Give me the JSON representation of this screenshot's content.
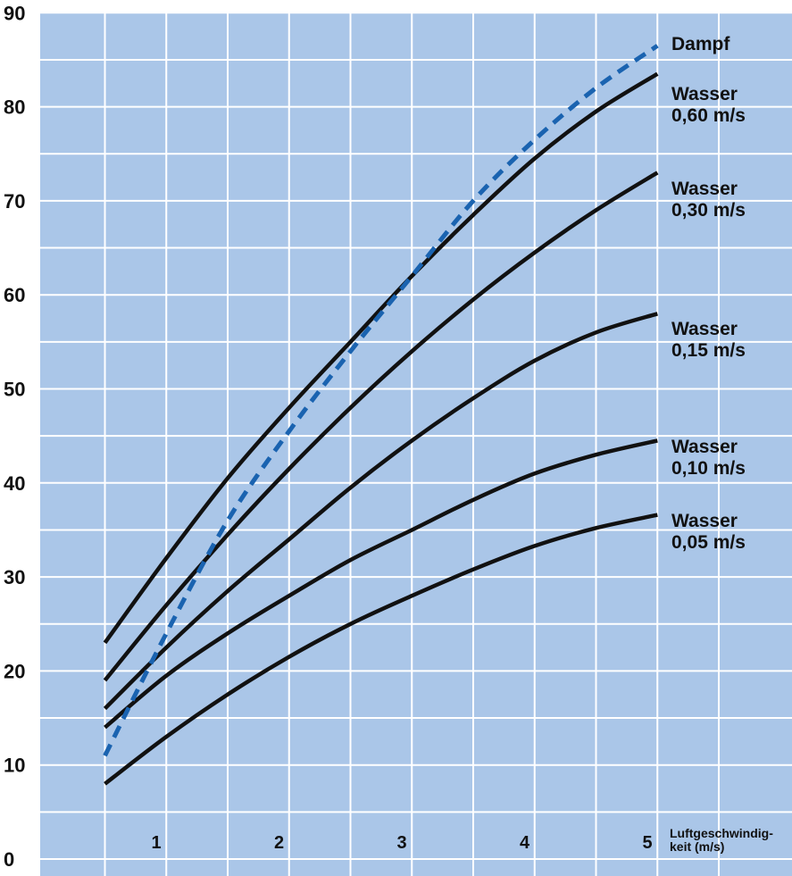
{
  "colors": {
    "background": "#aac6e8",
    "grid": "#ffffff",
    "curve": "#111111",
    "dampf": "#1a63b0"
  },
  "chart_data": {
    "type": "line",
    "title": "",
    "xlabel_lines": [
      "Luftgeschwindig-",
      "keit (m/s)"
    ],
    "ylabel": "",
    "xlim": [
      0.5,
      5.0
    ],
    "ylim": [
      0,
      90
    ],
    "x_ticks": [
      1,
      2,
      3,
      4,
      5
    ],
    "x_tick_labels": [
      "1",
      "2",
      "3",
      "4",
      "5"
    ],
    "y_ticks": [
      0,
      10,
      20,
      30,
      40,
      50,
      60,
      70,
      80,
      90
    ],
    "y_tick_labels": [
      "0",
      "10",
      "20",
      "30",
      "40",
      "50",
      "60",
      "70",
      "80",
      "90"
    ],
    "grid": true,
    "x": [
      0.5,
      1.0,
      1.5,
      2.0,
      2.5,
      3.0,
      3.5,
      4.0,
      4.5,
      5.0
    ],
    "series": [
      {
        "name": "Dampf",
        "label_lines": [
          "Dampf"
        ],
        "style": "dashed",
        "values": [
          11,
          24,
          36,
          45.5,
          54,
          62,
          70,
          76.5,
          82,
          86.5
        ]
      },
      {
        "name": "Wasser 0,60 m/s",
        "label_lines": [
          "Wasser",
          "0,60 m/s"
        ],
        "style": "solid",
        "values": [
          23,
          32,
          40.5,
          48,
          55,
          62,
          68.5,
          74.5,
          79.5,
          83.5
        ]
      },
      {
        "name": "Wasser 0,30 m/s",
        "label_lines": [
          "Wasser",
          "0,30 m/s"
        ],
        "style": "solid",
        "values": [
          19,
          27,
          34.5,
          41.5,
          48,
          54,
          59.5,
          64.5,
          69,
          73
        ]
      },
      {
        "name": "Wasser 0,15 m/s",
        "label_lines": [
          "Wasser",
          "0,15 m/s"
        ],
        "style": "solid",
        "values": [
          16,
          22.5,
          28.5,
          34,
          39.5,
          44.5,
          49,
          53,
          56,
          58
        ]
      },
      {
        "name": "Wasser 0,10 m/s",
        "label_lines": [
          "Wasser",
          "0,10 m/s"
        ],
        "style": "solid",
        "values": [
          14,
          19.5,
          24,
          28,
          31.8,
          35,
          38.2,
          41,
          43,
          44.5
        ]
      },
      {
        "name": "Wasser 0,05 m/s",
        "label_lines": [
          "Wasser",
          "0,05 m/s"
        ],
        "style": "solid",
        "values": [
          8,
          13,
          17.5,
          21.5,
          25,
          28,
          30.8,
          33.3,
          35.2,
          36.6
        ]
      }
    ]
  }
}
